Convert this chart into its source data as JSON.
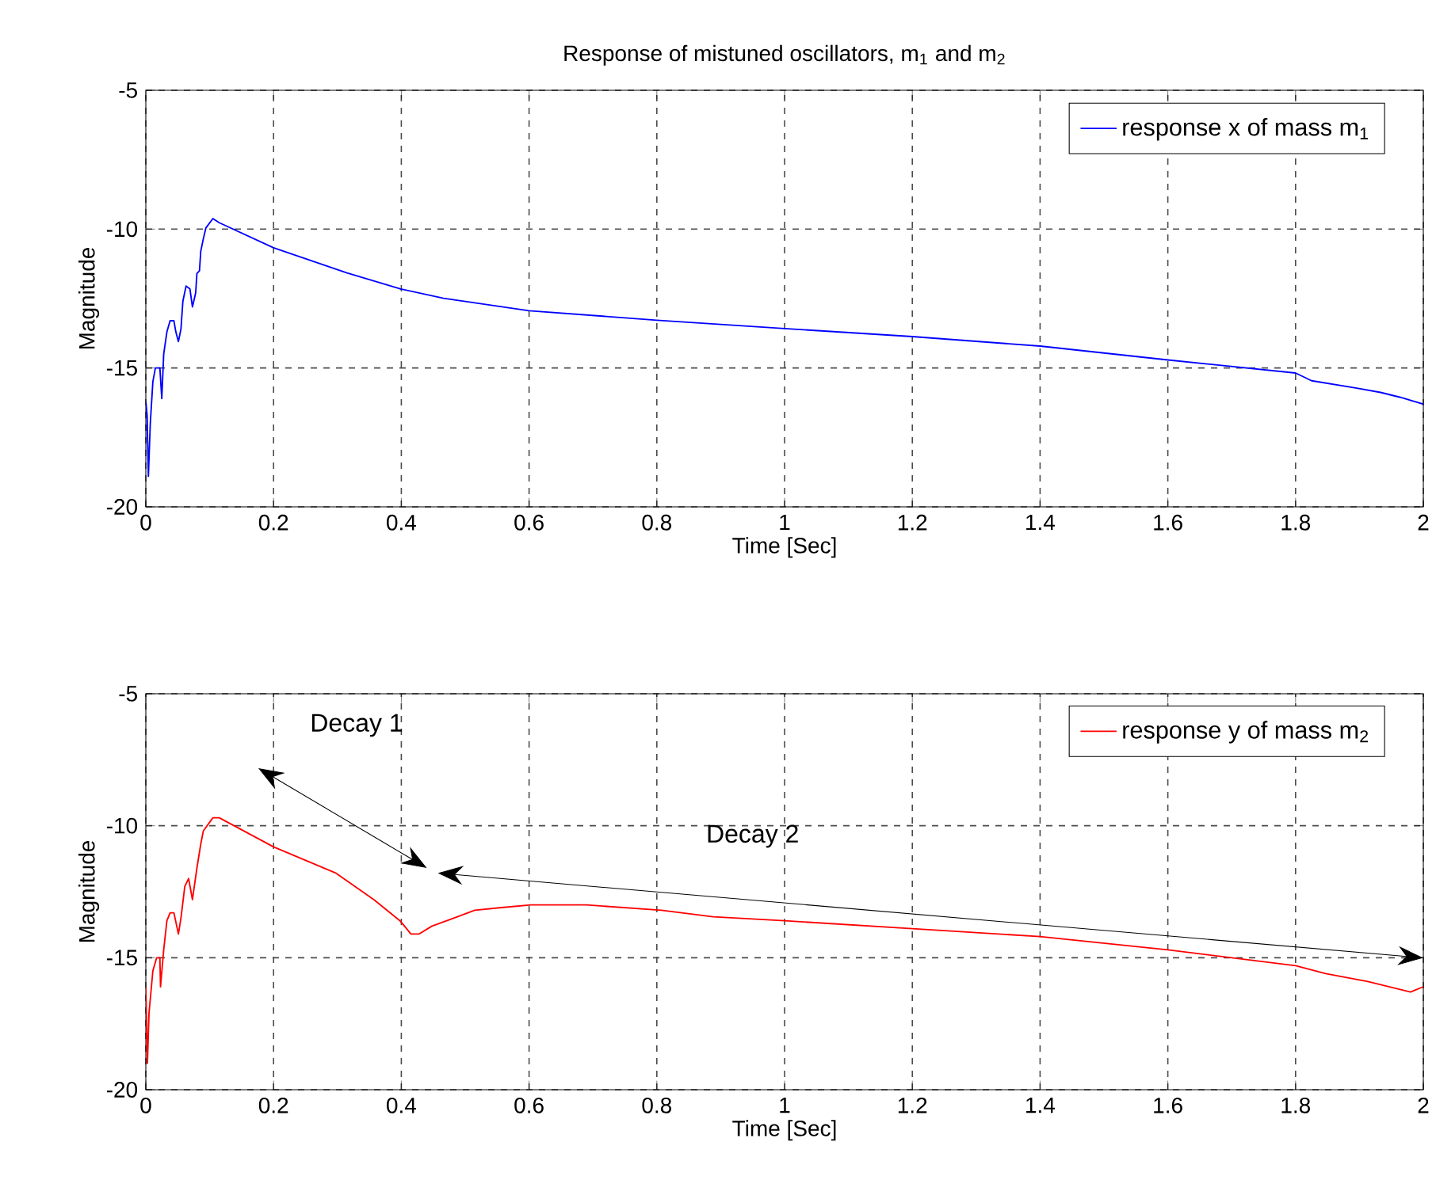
{
  "chart_data": [
    {
      "type": "line",
      "title": "Response of mistuned oscillators, m$_{1}$ and m$_{2}$",
      "xlabel": "Time [Sec]",
      "ylabel": "Magnitude",
      "xlim": [
        0,
        2
      ],
      "ylim": [
        -20,
        -5
      ],
      "xticks": [
        0,
        0.2,
        0.4,
        0.6,
        0.8,
        1,
        1.2,
        1.4,
        1.6,
        1.8,
        2
      ],
      "yticks": [
        -20,
        -15,
        -10,
        -5
      ],
      "grid": true,
      "legend": "top right",
      "series": [
        {
          "name": "response x of mass m$_{1}$",
          "color": "#0000ff",
          "x": [
            0,
            0.002,
            0.004,
            0.007,
            0.011,
            0.015,
            0.022,
            0.025,
            0.028,
            0.033,
            0.038,
            0.044,
            0.047,
            0.051,
            0.055,
            0.058,
            0.063,
            0.069,
            0.073,
            0.078,
            0.08,
            0.084,
            0.086,
            0.09,
            0.094,
            0.105,
            0.115,
            0.2,
            0.315,
            0.398,
            0.466,
            0.6,
            0.8,
            1.0,
            1.2,
            1.4,
            1.6,
            1.8,
            1.825,
            1.894,
            1.933,
            1.963,
            2.0
          ],
          "values": [
            -16.2,
            -16.7,
            -18.9,
            -17.0,
            -15.5,
            -15.0,
            -15.0,
            -16.1,
            -14.5,
            -13.7,
            -13.3,
            -13.3,
            -13.7,
            -14.05,
            -13.6,
            -12.6,
            -12.05,
            -12.15,
            -12.8,
            -12.3,
            -11.6,
            -11.5,
            -10.8,
            -10.35,
            -9.96,
            -9.62,
            -9.77,
            -10.67,
            -11.58,
            -12.15,
            -12.49,
            -12.94,
            -13.28,
            -13.58,
            -13.87,
            -14.21,
            -14.71,
            -15.18,
            -15.46,
            -15.72,
            -15.88,
            -16.05,
            -16.3
          ]
        }
      ]
    },
    {
      "type": "line",
      "xlabel": "Time [Sec]",
      "ylabel": "Magnitude",
      "xlim": [
        0,
        2
      ],
      "ylim": [
        -20,
        -5
      ],
      "xticks": [
        0,
        0.2,
        0.4,
        0.6,
        0.8,
        1,
        1.2,
        1.4,
        1.6,
        1.8,
        2
      ],
      "yticks": [
        -20,
        -15,
        -10,
        -5
      ],
      "grid": true,
      "legend": "top right",
      "annotations": [
        "Decay 1",
        "Decay 2"
      ],
      "series": [
        {
          "name": "response y of mass m$_{2}$",
          "color": "#ff0000",
          "x": [
            0,
            0.0025,
            0.005,
            0.011,
            0.017,
            0.022,
            0.023,
            0.028,
            0.033,
            0.038,
            0.044,
            0.051,
            0.055,
            0.061,
            0.067,
            0.073,
            0.08,
            0.086,
            0.09,
            0.105,
            0.115,
            0.2,
            0.298,
            0.357,
            0.398,
            0.415,
            0.428,
            0.448,
            0.482,
            0.515,
            0.557,
            0.603,
            0.69,
            0.807,
            0.888,
            1.0,
            1.2,
            1.4,
            1.6,
            1.8,
            1.847,
            1.913,
            1.98,
            2.0
          ],
          "values": [
            -16.1,
            -19.0,
            -17.1,
            -15.5,
            -15.0,
            -15.0,
            -16.1,
            -14.7,
            -13.6,
            -13.3,
            -13.3,
            -14.1,
            -13.5,
            -12.3,
            -12.0,
            -12.8,
            -11.6,
            -10.7,
            -10.2,
            -9.7,
            -9.7,
            -10.8,
            -11.8,
            -12.8,
            -13.6,
            -14.1,
            -14.1,
            -13.8,
            -13.5,
            -13.2,
            -13.1,
            -13.0,
            -13.0,
            -13.2,
            -13.45,
            -13.6,
            -13.9,
            -14.2,
            -14.7,
            -15.3,
            -15.6,
            -15.9,
            -16.3,
            -16.1
          ]
        }
      ]
    }
  ]
}
